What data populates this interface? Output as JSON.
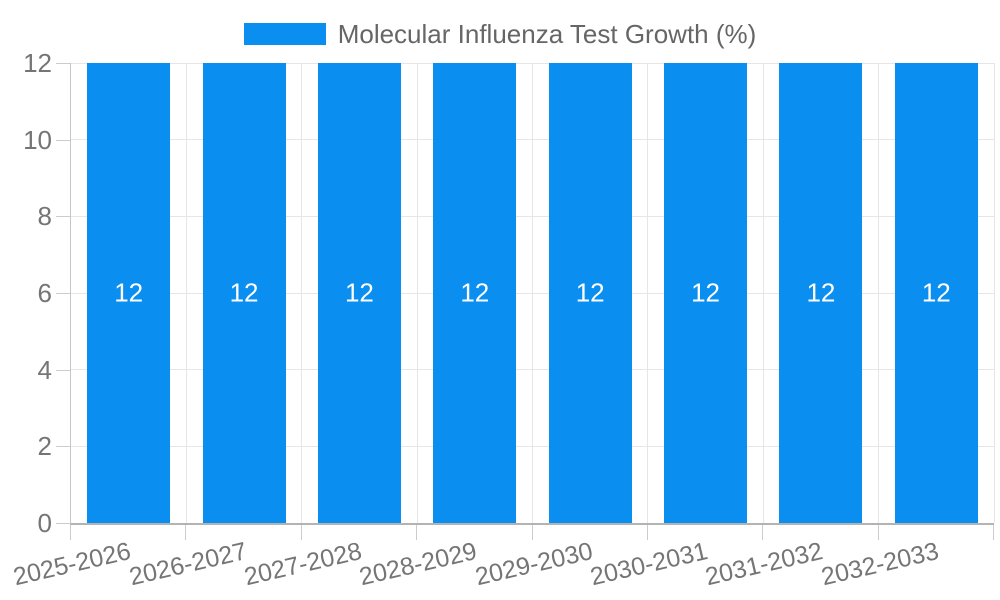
{
  "legend": {
    "label": "Molecular Influenza Test Growth (%)"
  },
  "colors": {
    "bar": "#0a8ff0",
    "grid": "#e6e6e6",
    "axis_line": "#b3b3b3",
    "tick_text": "#757575",
    "legend_text": "#666666",
    "bar_label_text": "#ffffff",
    "background": "#ffffff"
  },
  "chart_data": {
    "type": "bar",
    "title": "Molecular Influenza Test Growth (%)",
    "categories": [
      "2025-2026",
      "2026-2027",
      "2027-2028",
      "2028-2029",
      "2029-2030",
      "2030-2031",
      "2031-2032",
      "2032-2033"
    ],
    "values": [
      12,
      12,
      12,
      12,
      12,
      12,
      12,
      12
    ],
    "value_labels": [
      "12",
      "12",
      "12",
      "12",
      "12",
      "12",
      "12",
      "12"
    ],
    "xlabel": "",
    "ylabel": "",
    "ylim": [
      0,
      12
    ],
    "yticks": [
      0,
      2,
      4,
      6,
      8,
      10,
      12
    ],
    "grid": true,
    "legend_position": "top",
    "x_label_rotation_deg": -13
  }
}
